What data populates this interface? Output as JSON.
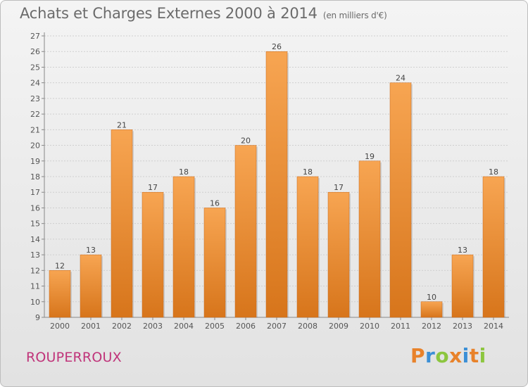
{
  "header": {
    "title": "Achats et Charges Externes 2000 à 2014",
    "unit": "(en milliers d'€)"
  },
  "footer": {
    "place": "ROUPERROUX",
    "logo_letters": [
      "P",
      "r",
      "o",
      "x",
      "i",
      "t",
      "i"
    ],
    "logo_colors": [
      "#e8822a",
      "#3b8fd6",
      "#8cc63f",
      "#e8822a",
      "#3b8fd6",
      "#e8822a",
      "#8cc63f"
    ]
  },
  "chart_data": {
    "type": "bar",
    "title": "Achats et Charges Externes 2000 à 2014",
    "subtitle": "(en milliers d'€)",
    "xlabel": "",
    "ylabel": "",
    "categories": [
      "2000",
      "2001",
      "2002",
      "2003",
      "2004",
      "2005",
      "2006",
      "2007",
      "2008",
      "2009",
      "2010",
      "2011",
      "2012",
      "2013",
      "2014"
    ],
    "values": [
      12,
      13,
      21,
      17,
      18,
      16,
      20,
      26,
      18,
      17,
      19,
      24,
      10,
      13,
      18
    ],
    "ylim": [
      9,
      27
    ],
    "yticks": [
      9,
      10,
      11,
      12,
      13,
      14,
      15,
      16,
      17,
      18,
      19,
      20,
      21,
      22,
      23,
      24,
      25,
      26,
      27
    ],
    "grid": true,
    "bar_color": "#f09a3e"
  }
}
